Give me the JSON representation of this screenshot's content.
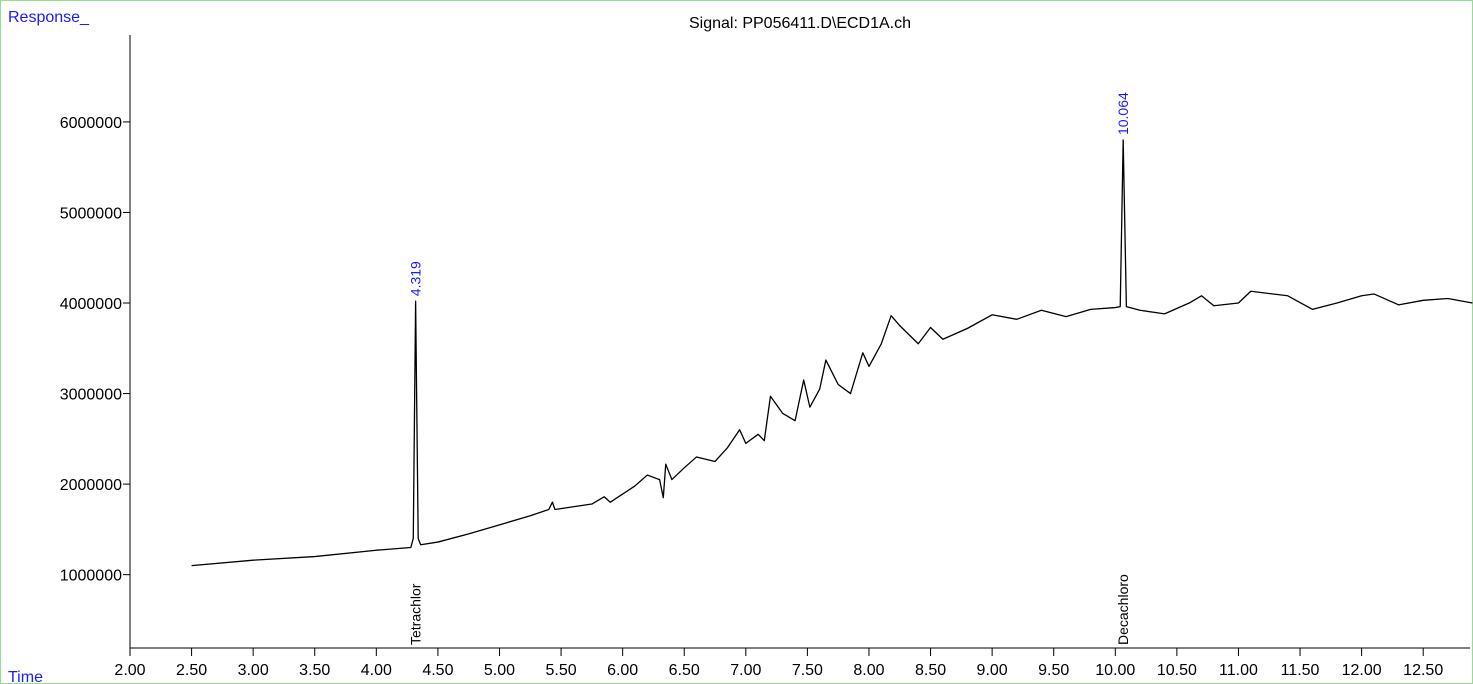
{
  "chart_data": {
    "type": "line",
    "title": "Signal: PP056411.D\\ECD1A.ch",
    "y_label": "Response_",
    "x_label": "Time",
    "xlim": [
      2,
      12.88
    ],
    "ylim": [
      190000,
      6960000
    ],
    "xticks": [
      {
        "value": 2,
        "label": "2.00"
      },
      {
        "value": 2.5,
        "label": "2.50"
      },
      {
        "value": 3,
        "label": "3.00"
      },
      {
        "value": 3.5,
        "label": "3.50"
      },
      {
        "value": 4,
        "label": "4.00"
      },
      {
        "value": 4.5,
        "label": "4.50"
      },
      {
        "value": 5,
        "label": "5.00"
      },
      {
        "value": 5.5,
        "label": "5.50"
      },
      {
        "value": 6,
        "label": "6.00"
      },
      {
        "value": 6.5,
        "label": "6.50"
      },
      {
        "value": 7,
        "label": "7.00"
      },
      {
        "value": 7.5,
        "label": "7.50"
      },
      {
        "value": 8,
        "label": "8.00"
      },
      {
        "value": 8.5,
        "label": "8.50"
      },
      {
        "value": 9,
        "label": "9.00"
      },
      {
        "value": 9.5,
        "label": "9.50"
      },
      {
        "value": 10,
        "label": "10.00"
      },
      {
        "value": 10.5,
        "label": "10.50"
      },
      {
        "value": 11,
        "label": "11.00"
      },
      {
        "value": 11.5,
        "label": "11.50"
      },
      {
        "value": 12,
        "label": "12.00"
      },
      {
        "value": 12.5,
        "label": "12.50"
      }
    ],
    "yticks": [
      1000000,
      2000000,
      3000000,
      4000000,
      5000000,
      6000000
    ],
    "x": [
      2.5,
      3.0,
      3.5,
      4.0,
      4.28,
      4.3,
      4.319,
      4.34,
      4.36,
      4.5,
      4.75,
      5.0,
      5.25,
      5.4,
      5.43,
      5.45,
      5.75,
      5.85,
      5.9,
      6.1,
      6.2,
      6.3,
      6.33,
      6.35,
      6.4,
      6.5,
      6.6,
      6.75,
      6.85,
      6.95,
      7.0,
      7.1,
      7.15,
      7.2,
      7.3,
      7.4,
      7.47,
      7.52,
      7.6,
      7.65,
      7.75,
      7.85,
      7.95,
      8.0,
      8.1,
      8.18,
      8.25,
      8.4,
      8.5,
      8.6,
      8.8,
      9.0,
      9.2,
      9.4,
      9.6,
      9.8,
      10.0,
      10.04,
      10.064,
      10.09,
      10.2,
      10.4,
      10.6,
      10.7,
      10.8,
      11.0,
      11.1,
      11.4,
      11.6,
      11.8,
      12.0,
      12.1,
      12.3,
      12.5,
      12.7,
      12.9
    ],
    "series": [
      {
        "name": "ECD1A",
        "color": "#000000",
        "values": [
          1100000,
          1160000,
          1200000,
          1270000,
          1300000,
          1400000,
          4020000,
          1400000,
          1330000,
          1360000,
          1450000,
          1550000,
          1650000,
          1720000,
          1800000,
          1720000,
          1780000,
          1860000,
          1800000,
          1980000,
          2100000,
          2050000,
          1850000,
          2220000,
          2050000,
          2180000,
          2300000,
          2250000,
          2400000,
          2600000,
          2450000,
          2550000,
          2480000,
          2970000,
          2780000,
          2700000,
          3150000,
          2850000,
          3050000,
          3370000,
          3100000,
          3000000,
          3450000,
          3300000,
          3550000,
          3860000,
          3750000,
          3550000,
          3730000,
          3600000,
          3720000,
          3870000,
          3820000,
          3920000,
          3850000,
          3930000,
          3950000,
          3960000,
          5800000,
          3960000,
          3920000,
          3880000,
          4000000,
          4080000,
          3970000,
          4000000,
          4130000,
          4080000,
          3930000,
          4000000,
          4080000,
          4100000,
          3980000,
          4030000,
          4050000,
          4000000
        ]
      }
    ],
    "annotations": [
      {
        "x": 4.319,
        "y": 4020000,
        "label": "4.319",
        "compound": "Tetrachlor"
      },
      {
        "x": 10.064,
        "y": 5800000,
        "label": "10.064",
        "compound": "Decachloro"
      }
    ]
  }
}
